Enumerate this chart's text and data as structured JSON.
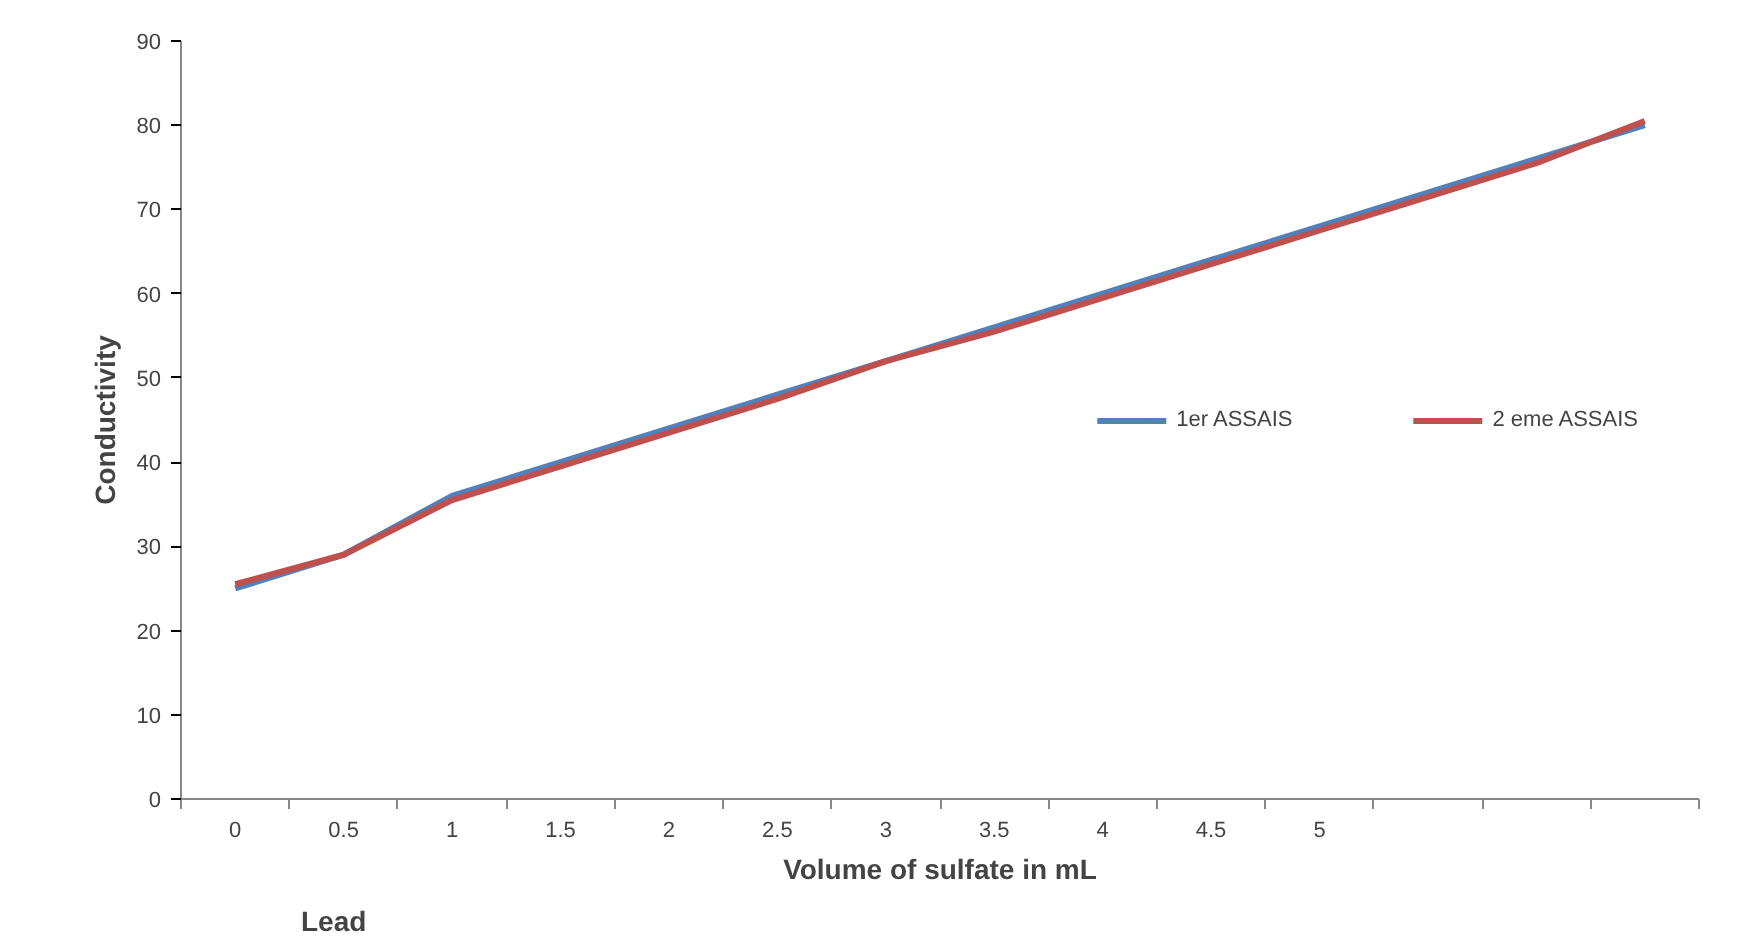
{
  "chart_data": {
    "type": "line",
    "xlabel": "Volume of sulfate in mL",
    "ylabel": "Conductivity",
    "annotations": [
      "Lead"
    ],
    "categories": [
      "0",
      "0.5",
      "1",
      "1.5",
      "2",
      "2.5",
      "3",
      "3.5",
      "4",
      "4.5",
      "5",
      null,
      null,
      null
    ],
    "series": [
      {
        "name": "1er ASSAIS",
        "color": "#4f81bd",
        "values": [
          25,
          29,
          36,
          40,
          44,
          48,
          52,
          56,
          60,
          64,
          68,
          72,
          76,
          80
        ]
      },
      {
        "name": "2 eme ASSAIS",
        "color": "#c0504d",
        "values": [
          25.5,
          29,
          35.5,
          39.5,
          43.5,
          47.5,
          52,
          55.5,
          59.5,
          63.5,
          67.5,
          71.5,
          75.5,
          80.5
        ]
      }
    ],
    "ylim": [
      0,
      90
    ],
    "yticks": [
      0,
      10,
      20,
      30,
      40,
      50,
      60,
      70,
      80,
      90
    ],
    "grid": false,
    "legend": "right",
    "marker": "none",
    "line_style": "solid"
  }
}
